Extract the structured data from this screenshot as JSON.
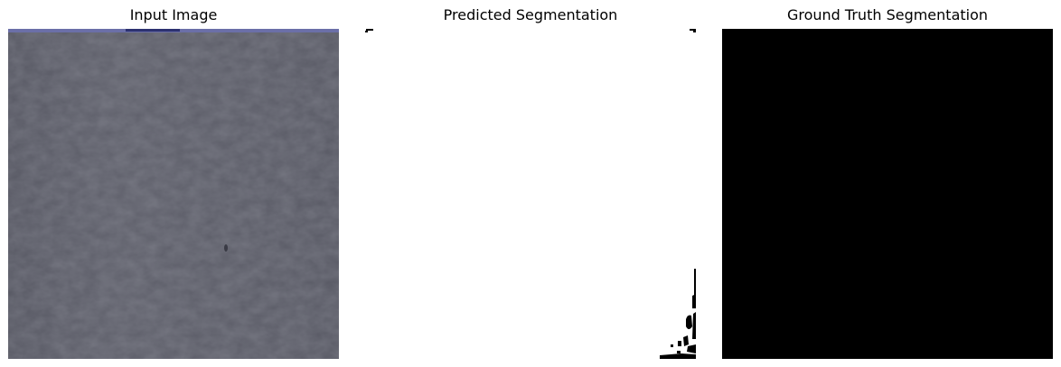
{
  "panels": [
    {
      "title": "Input Image"
    },
    {
      "title": "Predicted Segmentation"
    },
    {
      "title": "Ground Truth Segmentation"
    }
  ],
  "colors": {
    "input_base": "#5c5d68",
    "input_top_strip": "#6b6fa8",
    "pred_background": "#ffffff",
    "pred_foreground": "#000000",
    "ground_truth": "#000000"
  }
}
